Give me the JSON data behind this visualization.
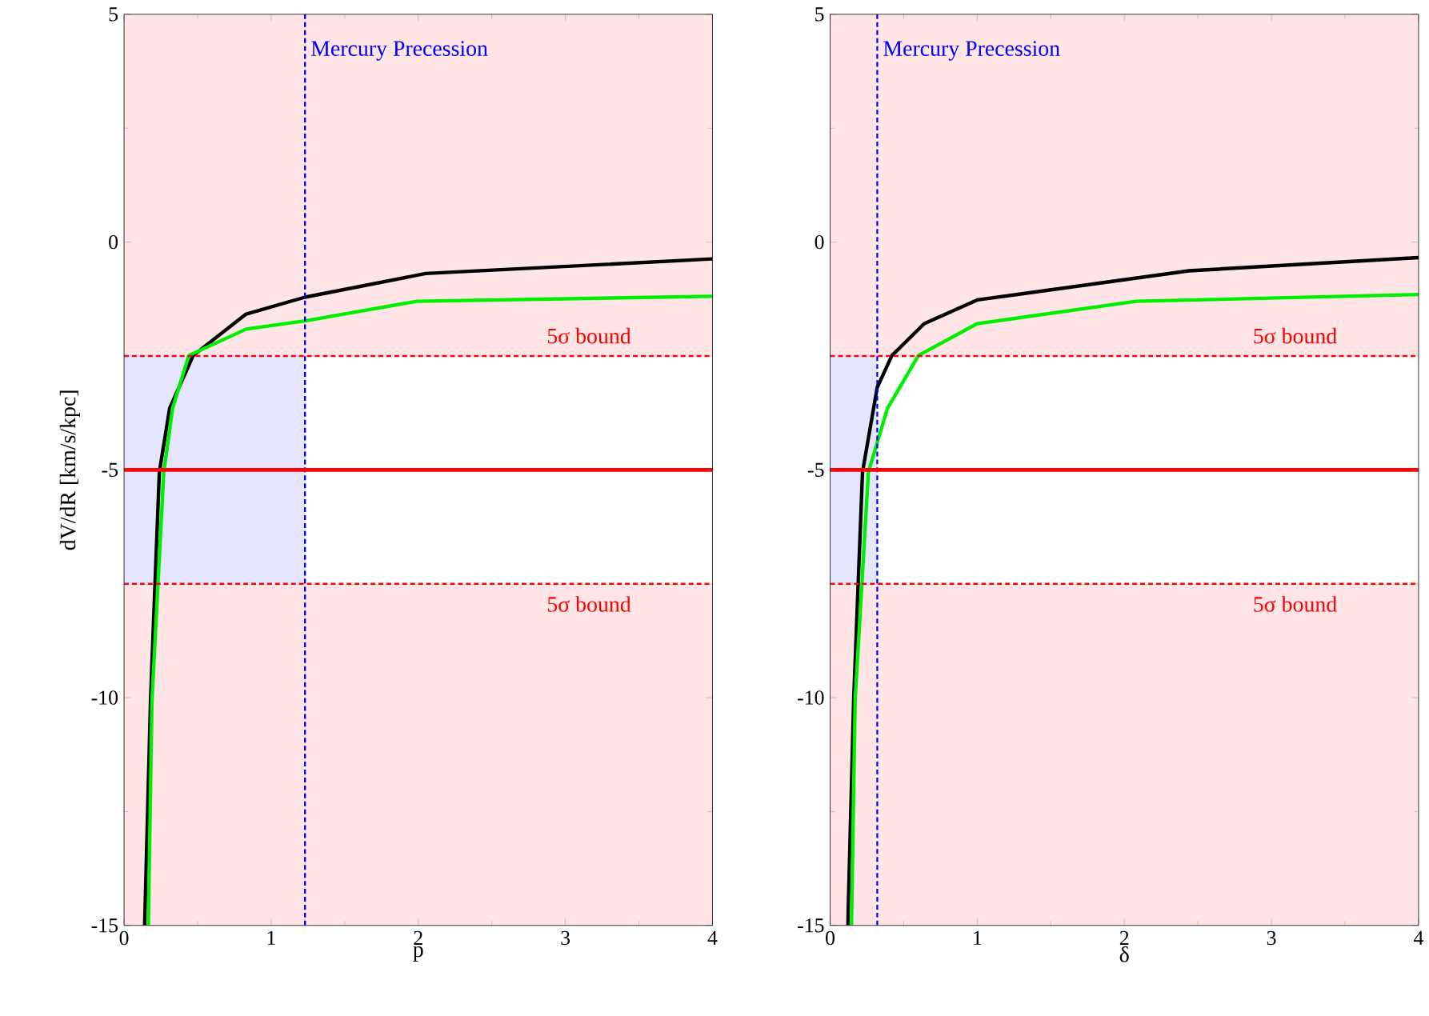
{
  "chart_data": [
    {
      "type": "line",
      "xlabel": "p",
      "ylabel": "dV/dR [km/s/kpc]",
      "xlim": [
        0,
        4
      ],
      "ylim": [
        -15,
        5
      ],
      "xticks": [
        0,
        1,
        2,
        3,
        4
      ],
      "yticks": [
        -15,
        -10,
        -5,
        0,
        5
      ],
      "series": [
        {
          "color": "#000000",
          "x": [
            0.14,
            0.18,
            0.24,
            0.31,
            0.47,
            0.83,
            1.23,
            2.05,
            4
          ],
          "values": [
            -15,
            -10.05,
            -5.05,
            -3.65,
            -2.49,
            -1.58,
            -1.21,
            -0.69,
            -0.37
          ]
        },
        {
          "color": "#00ee00",
          "x": [
            0.165,
            0.19,
            0.27,
            0.33,
            0.44,
            0.83,
            1.23,
            1.99,
            4
          ],
          "values": [
            -15,
            -10.05,
            -5.05,
            -3.65,
            -2.49,
            -1.91,
            -1.73,
            -1.3,
            -1.19
          ]
        }
      ],
      "bands": [
        {
          "axis": "x",
          "from": 0,
          "to": 1.23,
          "color": "#e5e5ff"
        },
        {
          "axis": "y",
          "from": -2.5,
          "to": 5,
          "color": "#ffe5e5"
        },
        {
          "axis": "y",
          "from": -15,
          "to": -7.5,
          "color": "#ffe5e5"
        }
      ],
      "ref_lines": [
        {
          "axis": "x",
          "value": 1.23,
          "label": "Mercury Precession",
          "color": "#0000ff",
          "line_style": "dashed"
        },
        {
          "axis": "y",
          "value": -2.5,
          "label": "5σ bound",
          "color": "#ff0000",
          "line_style": "dashed"
        },
        {
          "axis": "y",
          "value": -5,
          "color": "#ff0000",
          "line_style": "solid"
        },
        {
          "axis": "y",
          "value": -7.5,
          "label": "5σ bound",
          "color": "#ff0000",
          "line_style": "dashed"
        }
      ]
    },
    {
      "type": "line",
      "xlabel": "δ",
      "xlim": [
        0,
        4
      ],
      "ylim": [
        -15,
        5
      ],
      "xticks": [
        0,
        1,
        2,
        3,
        4
      ],
      "yticks": [
        -15,
        -10,
        -5,
        0,
        5
      ],
      "series": [
        {
          "color": "#000000",
          "x": [
            0.12,
            0.16,
            0.22,
            0.32,
            0.42,
            0.64,
            1.0,
            2.44,
            4
          ],
          "values": [
            -15,
            -10.05,
            -5.05,
            -3.19,
            -2.49,
            -1.79,
            -1.27,
            -0.63,
            -0.34
          ]
        },
        {
          "color": "#00ee00",
          "x": [
            0.145,
            0.17,
            0.26,
            0.39,
            0.6,
            1.0,
            2.08,
            4
          ],
          "values": [
            -15,
            -10.05,
            -5.05,
            -3.65,
            -2.49,
            -1.79,
            -1.3,
            -1.15
          ]
        }
      ],
      "bands": [
        {
          "axis": "x",
          "from": 0,
          "to": 0.32,
          "color": "#e5e5ff"
        },
        {
          "axis": "y",
          "from": -2.5,
          "to": 5,
          "color": "#ffe5e5"
        },
        {
          "axis": "y",
          "from": -15,
          "to": -7.5,
          "color": "#ffe5e5"
        }
      ],
      "ref_lines": [
        {
          "axis": "x",
          "value": 0.32,
          "label": "Mercury Precession",
          "color": "#0000ff",
          "line_style": "dashed"
        },
        {
          "axis": "y",
          "value": -2.5,
          "label": "5σ bound",
          "color": "#ff0000",
          "line_style": "dashed"
        },
        {
          "axis": "y",
          "value": -5,
          "color": "#ff0000",
          "line_style": "solid"
        },
        {
          "axis": "y",
          "value": -7.5,
          "label": "5σ bound",
          "color": "#ff0000",
          "line_style": "dashed"
        }
      ]
    }
  ]
}
